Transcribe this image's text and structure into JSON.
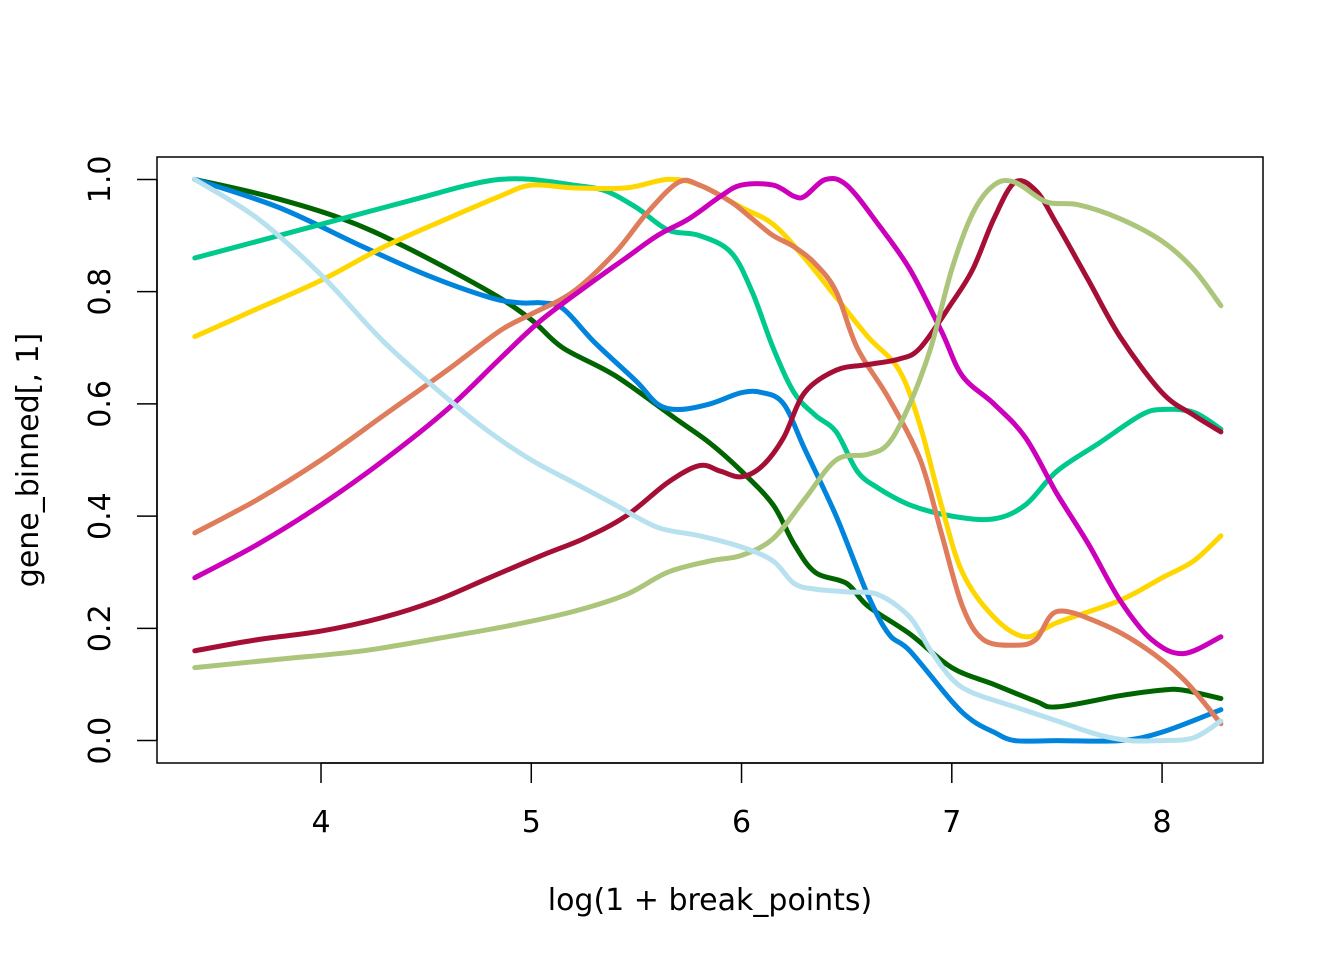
{
  "chart_data": {
    "type": "line",
    "title": "",
    "xlabel": "log(1 + break_points)",
    "ylabel": "gene_binned[, 1]",
    "xlim": [
      3.22,
      8.48
    ],
    "ylim": [
      -0.04,
      1.04
    ],
    "xticks": [
      4,
      5,
      6,
      7,
      8
    ],
    "yticks": [
      0.0,
      0.2,
      0.4,
      0.6,
      0.8,
      1.0
    ],
    "xtick_labels": [
      "4",
      "5",
      "6",
      "7",
      "8"
    ],
    "ytick_labels": [
      "0.0",
      "0.2",
      "0.4",
      "0.6",
      "0.8",
      "1.0"
    ],
    "grid": false,
    "legend": "none",
    "series": [
      {
        "color": "#006400",
        "points": [
          [
            3.4,
            1.0
          ],
          [
            3.75,
            0.97
          ],
          [
            4.1,
            0.93
          ],
          [
            4.4,
            0.88
          ],
          [
            4.8,
            0.8
          ],
          [
            5.0,
            0.75
          ],
          [
            5.15,
            0.7
          ],
          [
            5.4,
            0.65
          ],
          [
            5.7,
            0.57
          ],
          [
            5.85,
            0.53
          ],
          [
            6.0,
            0.48
          ],
          [
            6.15,
            0.42
          ],
          [
            6.25,
            0.35
          ],
          [
            6.35,
            0.3
          ],
          [
            6.5,
            0.28
          ],
          [
            6.6,
            0.24
          ],
          [
            6.8,
            0.19
          ],
          [
            7.0,
            0.13
          ],
          [
            7.2,
            0.1
          ],
          [
            7.4,
            0.07
          ],
          [
            7.5,
            0.06
          ],
          [
            7.8,
            0.08
          ],
          [
            8.0,
            0.09
          ],
          [
            8.1,
            0.09
          ],
          [
            8.28,
            0.075
          ]
        ]
      },
      {
        "color": "#0084DC",
        "points": [
          [
            3.4,
            1.0
          ],
          [
            3.8,
            0.95
          ],
          [
            4.2,
            0.88
          ],
          [
            4.5,
            0.83
          ],
          [
            4.8,
            0.79
          ],
          [
            4.95,
            0.78
          ],
          [
            5.05,
            0.78
          ],
          [
            5.15,
            0.77
          ],
          [
            5.3,
            0.71
          ],
          [
            5.5,
            0.64
          ],
          [
            5.6,
            0.6
          ],
          [
            5.7,
            0.59
          ],
          [
            5.85,
            0.6
          ],
          [
            6.0,
            0.62
          ],
          [
            6.1,
            0.62
          ],
          [
            6.2,
            0.6
          ],
          [
            6.3,
            0.52
          ],
          [
            6.45,
            0.4
          ],
          [
            6.6,
            0.26
          ],
          [
            6.7,
            0.19
          ],
          [
            6.8,
            0.16
          ],
          [
            7.0,
            0.07
          ],
          [
            7.1,
            0.035
          ],
          [
            7.2,
            0.015
          ],
          [
            7.3,
            0.0
          ],
          [
            7.5,
            0.0
          ],
          [
            7.8,
            0.0
          ],
          [
            8.0,
            0.015
          ],
          [
            8.28,
            0.055
          ]
        ]
      },
      {
        "color": "#00C98D",
        "points": [
          [
            3.4,
            0.86
          ],
          [
            3.7,
            0.89
          ],
          [
            4.0,
            0.92
          ],
          [
            4.3,
            0.95
          ],
          [
            4.5,
            0.97
          ],
          [
            4.7,
            0.99
          ],
          [
            4.85,
            1.0
          ],
          [
            5.0,
            1.0
          ],
          [
            5.2,
            0.99
          ],
          [
            5.35,
            0.98
          ],
          [
            5.5,
            0.95
          ],
          [
            5.65,
            0.91
          ],
          [
            5.8,
            0.9
          ],
          [
            5.95,
            0.87
          ],
          [
            6.05,
            0.8
          ],
          [
            6.15,
            0.7
          ],
          [
            6.25,
            0.62
          ],
          [
            6.35,
            0.58
          ],
          [
            6.45,
            0.55
          ],
          [
            6.55,
            0.48
          ],
          [
            6.65,
            0.45
          ],
          [
            6.8,
            0.42
          ],
          [
            7.0,
            0.4
          ],
          [
            7.2,
            0.395
          ],
          [
            7.35,
            0.42
          ],
          [
            7.5,
            0.48
          ],
          [
            7.7,
            0.53
          ],
          [
            7.9,
            0.58
          ],
          [
            8.0,
            0.59
          ],
          [
            8.15,
            0.585
          ],
          [
            8.28,
            0.555
          ]
        ]
      },
      {
        "color": "#FFD700",
        "points": [
          [
            3.4,
            0.72
          ],
          [
            3.7,
            0.77
          ],
          [
            4.0,
            0.82
          ],
          [
            4.3,
            0.88
          ],
          [
            4.6,
            0.93
          ],
          [
            4.85,
            0.97
          ],
          [
            5.0,
            0.99
          ],
          [
            5.2,
            0.985
          ],
          [
            5.45,
            0.985
          ],
          [
            5.65,
            1.0
          ],
          [
            5.8,
            0.99
          ],
          [
            6.0,
            0.95
          ],
          [
            6.15,
            0.92
          ],
          [
            6.3,
            0.86
          ],
          [
            6.45,
            0.79
          ],
          [
            6.6,
            0.72
          ],
          [
            6.75,
            0.66
          ],
          [
            6.85,
            0.56
          ],
          [
            6.95,
            0.42
          ],
          [
            7.05,
            0.3
          ],
          [
            7.2,
            0.22
          ],
          [
            7.35,
            0.185
          ],
          [
            7.5,
            0.21
          ],
          [
            7.8,
            0.25
          ],
          [
            8.0,
            0.29
          ],
          [
            8.15,
            0.32
          ],
          [
            8.28,
            0.365
          ]
        ]
      },
      {
        "color": "#DF7C5C",
        "points": [
          [
            3.4,
            0.37
          ],
          [
            3.7,
            0.43
          ],
          [
            4.0,
            0.5
          ],
          [
            4.3,
            0.58
          ],
          [
            4.6,
            0.66
          ],
          [
            4.85,
            0.73
          ],
          [
            5.0,
            0.76
          ],
          [
            5.2,
            0.8
          ],
          [
            5.4,
            0.87
          ],
          [
            5.55,
            0.94
          ],
          [
            5.7,
            0.995
          ],
          [
            5.8,
            0.99
          ],
          [
            5.95,
            0.96
          ],
          [
            6.05,
            0.93
          ],
          [
            6.15,
            0.9
          ],
          [
            6.25,
            0.88
          ],
          [
            6.35,
            0.85
          ],
          [
            6.45,
            0.8
          ],
          [
            6.55,
            0.7
          ],
          [
            6.7,
            0.61
          ],
          [
            6.85,
            0.5
          ],
          [
            6.95,
            0.37
          ],
          [
            7.05,
            0.24
          ],
          [
            7.15,
            0.18
          ],
          [
            7.3,
            0.17
          ],
          [
            7.4,
            0.18
          ],
          [
            7.5,
            0.23
          ],
          [
            7.7,
            0.21
          ],
          [
            7.9,
            0.17
          ],
          [
            8.1,
            0.11
          ],
          [
            8.28,
            0.03
          ]
        ]
      },
      {
        "color": "#CC00BB",
        "points": [
          [
            3.4,
            0.29
          ],
          [
            3.7,
            0.35
          ],
          [
            4.0,
            0.42
          ],
          [
            4.3,
            0.5
          ],
          [
            4.6,
            0.59
          ],
          [
            4.85,
            0.68
          ],
          [
            5.05,
            0.75
          ],
          [
            5.3,
            0.82
          ],
          [
            5.45,
            0.86
          ],
          [
            5.6,
            0.9
          ],
          [
            5.75,
            0.93
          ],
          [
            5.9,
            0.97
          ],
          [
            6.0,
            0.99
          ],
          [
            6.15,
            0.99
          ],
          [
            6.25,
            0.97
          ],
          [
            6.3,
            0.97
          ],
          [
            6.4,
            1.0
          ],
          [
            6.5,
            0.99
          ],
          [
            6.65,
            0.92
          ],
          [
            6.8,
            0.84
          ],
          [
            6.95,
            0.73
          ],
          [
            7.05,
            0.65
          ],
          [
            7.2,
            0.6
          ],
          [
            7.35,
            0.54
          ],
          [
            7.5,
            0.44
          ],
          [
            7.65,
            0.35
          ],
          [
            7.8,
            0.25
          ],
          [
            7.95,
            0.18
          ],
          [
            8.1,
            0.155
          ],
          [
            8.28,
            0.185
          ]
        ]
      },
      {
        "color": "#A50F35",
        "points": [
          [
            3.4,
            0.16
          ],
          [
            3.7,
            0.18
          ],
          [
            4.0,
            0.195
          ],
          [
            4.3,
            0.22
          ],
          [
            4.55,
            0.25
          ],
          [
            4.8,
            0.29
          ],
          [
            5.05,
            0.33
          ],
          [
            5.25,
            0.36
          ],
          [
            5.45,
            0.4
          ],
          [
            5.65,
            0.46
          ],
          [
            5.8,
            0.49
          ],
          [
            5.9,
            0.48
          ],
          [
            6.0,
            0.47
          ],
          [
            6.1,
            0.49
          ],
          [
            6.2,
            0.54
          ],
          [
            6.3,
            0.62
          ],
          [
            6.45,
            0.66
          ],
          [
            6.6,
            0.67
          ],
          [
            6.75,
            0.68
          ],
          [
            6.85,
            0.7
          ],
          [
            7.0,
            0.78
          ],
          [
            7.1,
            0.84
          ],
          [
            7.2,
            0.93
          ],
          [
            7.3,
            0.995
          ],
          [
            7.4,
            0.98
          ],
          [
            7.5,
            0.92
          ],
          [
            7.65,
            0.82
          ],
          [
            7.8,
            0.72
          ],
          [
            8.0,
            0.62
          ],
          [
            8.15,
            0.58
          ],
          [
            8.28,
            0.55
          ]
        ]
      },
      {
        "color": "#ABC57A",
        "points": [
          [
            3.4,
            0.13
          ],
          [
            3.8,
            0.145
          ],
          [
            4.2,
            0.16
          ],
          [
            4.6,
            0.185
          ],
          [
            4.9,
            0.205
          ],
          [
            5.2,
            0.23
          ],
          [
            5.45,
            0.26
          ],
          [
            5.65,
            0.3
          ],
          [
            5.85,
            0.32
          ],
          [
            6.0,
            0.33
          ],
          [
            6.15,
            0.36
          ],
          [
            6.3,
            0.43
          ],
          [
            6.45,
            0.5
          ],
          [
            6.6,
            0.51
          ],
          [
            6.7,
            0.53
          ],
          [
            6.8,
            0.6
          ],
          [
            6.9,
            0.7
          ],
          [
            7.0,
            0.84
          ],
          [
            7.1,
            0.94
          ],
          [
            7.2,
            0.99
          ],
          [
            7.3,
            0.995
          ],
          [
            7.45,
            0.96
          ],
          [
            7.6,
            0.955
          ],
          [
            7.8,
            0.93
          ],
          [
            8.0,
            0.89
          ],
          [
            8.15,
            0.84
          ],
          [
            8.28,
            0.775
          ]
        ]
      },
      {
        "color": "#B7E1EE",
        "points": [
          [
            3.4,
            1.0
          ],
          [
            3.7,
            0.93
          ],
          [
            4.0,
            0.83
          ],
          [
            4.3,
            0.71
          ],
          [
            4.6,
            0.61
          ],
          [
            4.8,
            0.55
          ],
          [
            5.0,
            0.5
          ],
          [
            5.2,
            0.46
          ],
          [
            5.4,
            0.42
          ],
          [
            5.6,
            0.38
          ],
          [
            5.8,
            0.365
          ],
          [
            6.0,
            0.345
          ],
          [
            6.15,
            0.32
          ],
          [
            6.25,
            0.28
          ],
          [
            6.35,
            0.27
          ],
          [
            6.5,
            0.265
          ],
          [
            6.65,
            0.26
          ],
          [
            6.8,
            0.22
          ],
          [
            6.9,
            0.16
          ],
          [
            7.0,
            0.11
          ],
          [
            7.1,
            0.085
          ],
          [
            7.3,
            0.06
          ],
          [
            7.5,
            0.035
          ],
          [
            7.7,
            0.01
          ],
          [
            7.85,
            0.0
          ],
          [
            8.0,
            0.0
          ],
          [
            8.15,
            0.005
          ],
          [
            8.28,
            0.035
          ]
        ]
      }
    ]
  }
}
